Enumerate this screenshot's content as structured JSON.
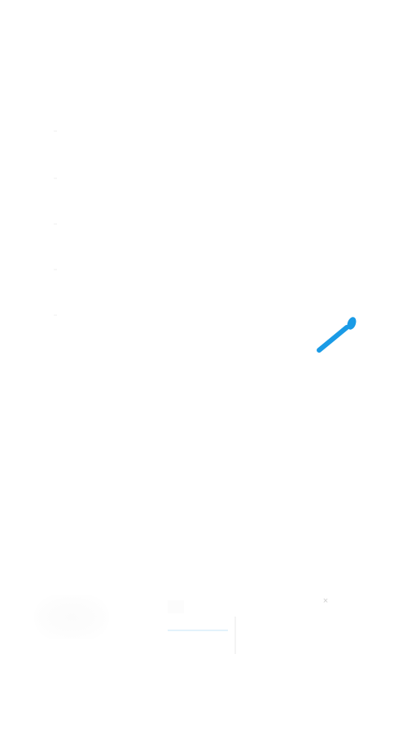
{
  "colors": {
    "background": "#ffffff",
    "accent": "#1a9be6",
    "faint": "#e3f2fb"
  },
  "icons": {
    "pointer": "pin-cursor-icon",
    "close": "close-icon"
  },
  "bottom_bar": {
    "close_glyph": "×"
  }
}
